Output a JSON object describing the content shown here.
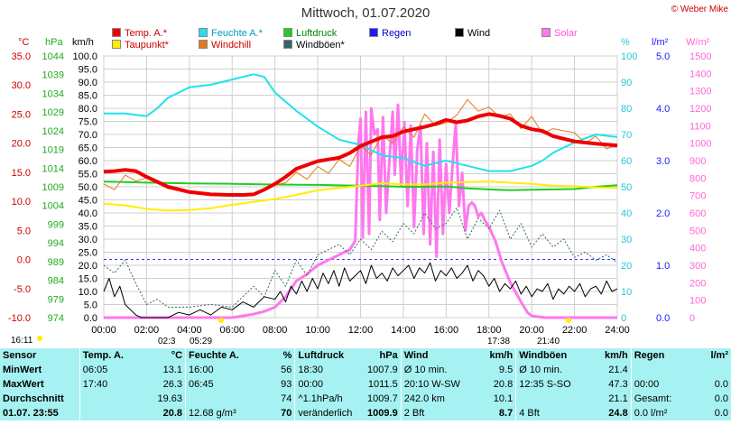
{
  "title": "Mittwoch, 01.07.2020",
  "credit": "© Weber Mike",
  "legend": [
    {
      "label": "Temp. A.*",
      "color": "#ee0000"
    },
    {
      "label": "Feuchte A.*",
      "color": "#22e0ee"
    },
    {
      "label": "Luftdruck",
      "color": "#22cc22"
    },
    {
      "label": "Regen",
      "color": "#1a1aff"
    },
    {
      "label": "Wind",
      "color": "#000000"
    },
    {
      "label": "Solar",
      "color": "#ff77ee"
    },
    {
      "label": "Taupunkt*",
      "color": "#ffee00"
    },
    {
      "label": "Windchill",
      "color": "#e07a1a"
    },
    {
      "label": "Windböen*",
      "color": "#336666"
    }
  ],
  "units": {
    "temp": "°C",
    "press": "hPa",
    "wind": "km/h",
    "hum": "%",
    "rain": "l/m²",
    "solar": "W/m²"
  },
  "chart_data": {
    "type": "line",
    "x_labels": [
      "00:00",
      "02:00",
      "04:00",
      "06:00",
      "08:00",
      "10:00",
      "12:00",
      "14:00",
      "16:00",
      "18:00",
      "20:00",
      "22:00",
      "24:00"
    ],
    "axes": {
      "temp": {
        "ticks": [
          "35.0",
          "30.0",
          "25.0",
          "20.0",
          "15.0",
          "10.0",
          "5.0",
          "0.0",
          "-5.0",
          "-10.0"
        ],
        "range": [
          -10,
          35
        ],
        "color": "#ee0000"
      },
      "press": {
        "ticks": [
          "1044",
          "1039",
          "1034",
          "1029",
          "1024",
          "1019",
          "1014",
          "1009",
          "1004",
          "999",
          "994",
          "989",
          "984",
          "979",
          "974"
        ],
        "range": [
          974,
          1044
        ],
        "color": "#22aa22"
      },
      "wind": {
        "ticks": [
          "100.0",
          "95.0",
          "90.0",
          "85.0",
          "80.0",
          "75.0",
          "70.0",
          "65.0",
          "60.0",
          "55.0",
          "50.0",
          "45.0",
          "40.0",
          "35.0",
          "30.0",
          "25.0",
          "20.0",
          "15.0",
          "10.0",
          "5.0",
          "0.0"
        ],
        "range": [
          0,
          100
        ],
        "color": "#000000"
      },
      "hum": {
        "ticks": [
          "100",
          "90",
          "80",
          "70",
          "60",
          "50",
          "40",
          "30",
          "20",
          "10",
          "0"
        ],
        "range": [
          0,
          100
        ],
        "color": "#22d0dd"
      },
      "rain": {
        "ticks": [
          "5.0",
          "4.0",
          "3.0",
          "2.0",
          "1.0",
          "0.0"
        ],
        "range": [
          0,
          5
        ],
        "color": "#1a1aff"
      },
      "solar": {
        "ticks": [
          "1500",
          "1400",
          "1300",
          "1200",
          "1100",
          "1000",
          "900",
          "800",
          "700",
          "600",
          "500",
          "400",
          "300",
          "200",
          "100",
          "0"
        ],
        "range": [
          0,
          1500
        ],
        "color": "#ff77ee"
      }
    },
    "series": [
      {
        "name": "Temp. A.*",
        "axis": "temp",
        "color": "#ee0000",
        "width": 4,
        "x": [
          0,
          0.5,
          1,
          1.5,
          2,
          3,
          4,
          5,
          6,
          6.5,
          7,
          7.5,
          8,
          8.5,
          9,
          10,
          11,
          11.5,
          12,
          13,
          13.5,
          14,
          15,
          15.5,
          16,
          16.5,
          17,
          17.5,
          18,
          18.5,
          19,
          19.5,
          20,
          20.5,
          21,
          22,
          23,
          24
        ],
        "y": [
          15.1,
          15.2,
          15.4,
          15.2,
          14.2,
          12.5,
          11.6,
          11.2,
          11.1,
          11.1,
          11.2,
          12.0,
          13.0,
          14.2,
          15.6,
          16.9,
          17.5,
          18.3,
          19.5,
          21.0,
          21.2,
          22.0,
          22.8,
          23.3,
          24.0,
          23.6,
          23.9,
          24.6,
          25.0,
          24.7,
          24.2,
          23.0,
          22.4,
          22.1,
          21.2,
          20.3,
          19.9,
          19.6
        ]
      },
      {
        "name": "Feuchte A.*",
        "axis": "hum",
        "color": "#22e0ee",
        "width": 2,
        "x": [
          0,
          1,
          2,
          2.5,
          3,
          3.5,
          4,
          5,
          6,
          7,
          7.5,
          8,
          9,
          10,
          11,
          12,
          13,
          14,
          15,
          16,
          17,
          17.5,
          18,
          19,
          20,
          20.5,
          21,
          22,
          23,
          24
        ],
        "y": [
          78,
          78,
          77,
          80,
          84,
          86,
          88,
          89,
          91,
          93,
          92,
          86,
          79,
          73,
          68,
          66,
          62,
          61,
          58,
          60,
          58,
          57,
          56,
          56,
          58,
          60,
          63,
          67,
          70,
          69
        ]
      },
      {
        "name": "Luftdruck",
        "axis": "press",
        "color": "#22cc22",
        "width": 2,
        "x": [
          0,
          2,
          4,
          6,
          8,
          10,
          12,
          13,
          14,
          15,
          16,
          17,
          18,
          19,
          20,
          21,
          22,
          23,
          24
        ],
        "y": [
          1010.4,
          1010.1,
          1009.9,
          1009.8,
          1009.6,
          1009.5,
          1009.3,
          1009.2,
          1009.0,
          1009.0,
          1009.1,
          1008.6,
          1008.3,
          1008.1,
          1008.2,
          1008.3,
          1008.4,
          1009.0,
          1009.4
        ]
      },
      {
        "name": "Taupunkt*",
        "axis": "temp",
        "color": "#ffee00",
        "width": 2,
        "x": [
          0,
          1,
          2,
          3,
          4,
          5,
          6,
          7,
          8,
          9,
          10,
          11,
          12,
          13,
          14,
          15,
          16,
          17,
          18,
          19,
          20,
          21,
          22,
          23,
          24
        ],
        "y": [
          9.6,
          9.3,
          8.7,
          8.4,
          8.5,
          8.8,
          9.4,
          9.9,
          10.4,
          11.1,
          11.9,
          12.3,
          12.7,
          13.1,
          12.9,
          12.9,
          13.2,
          13.3,
          13.4,
          13.2,
          13.0,
          12.7,
          12.6,
          12.4,
          12.3
        ]
      },
      {
        "name": "Windchill",
        "axis": "temp",
        "color": "#e07a1a",
        "width": 1,
        "x": [
          0,
          0.5,
          1,
          1.5,
          2,
          3,
          4,
          5,
          6,
          7,
          8,
          8.5,
          9,
          9.5,
          10,
          10.5,
          11,
          11.5,
          12,
          12.5,
          13,
          13.5,
          14,
          14.5,
          15,
          15.5,
          16,
          16.5,
          17,
          17.5,
          18,
          18.5,
          19,
          19.5,
          20,
          20.5,
          21,
          22,
          22.5,
          23,
          23.5,
          24
        ],
        "y": [
          13.0,
          12.0,
          14.5,
          13.5,
          14.0,
          12.2,
          11.4,
          11.1,
          11.0,
          11.1,
          12.8,
          13.2,
          15.0,
          13.8,
          16.0,
          14.8,
          17.2,
          16.0,
          19.5,
          18.0,
          21.4,
          20.0,
          22.8,
          21.0,
          25.0,
          23.0,
          23.5,
          24.8,
          27.5,
          25.5,
          26.2,
          24.5,
          25.0,
          22.5,
          24.6,
          21.7,
          22.5,
          21.8,
          20.0,
          21.2,
          19.0,
          19.8
        ]
      },
      {
        "name": "Windböen*",
        "axis": "wind",
        "color": "#336666",
        "width": 1,
        "dash": "2,2",
        "x": [
          0,
          0.5,
          1,
          1.5,
          2,
          2.5,
          3,
          4,
          5,
          6,
          6.5,
          7,
          7.5,
          8,
          8.5,
          9,
          9.5,
          10,
          11,
          11.5,
          12,
          12.5,
          13,
          13.5,
          14,
          14.5,
          15,
          15.5,
          16,
          16.5,
          17,
          17.5,
          18,
          18.5,
          19,
          19.5,
          20,
          20.5,
          21,
          21.5,
          22,
          22.5,
          23,
          23.5,
          24
        ],
        "y": [
          20,
          17,
          22,
          13,
          5,
          7,
          4,
          4,
          5,
          4,
          8,
          12,
          8,
          18,
          12,
          22,
          16,
          24,
          28,
          24,
          30,
          26,
          33,
          29,
          36,
          32,
          40,
          34,
          36,
          42,
          30,
          38,
          34,
          41,
          30,
          36,
          27,
          32,
          27,
          30,
          23,
          25,
          22,
          24,
          21
        ]
      },
      {
        "name": "Wind",
        "axis": "wind",
        "color": "#000000",
        "width": 1,
        "x": [
          0,
          0.25,
          0.5,
          0.75,
          1,
          1.25,
          1.5,
          1.75,
          2,
          2.5,
          3,
          3.5,
          4,
          4.5,
          5,
          5.5,
          6,
          6.5,
          7,
          7.5,
          8,
          8.25,
          8.5,
          8.75,
          9,
          9.25,
          9.5,
          9.75,
          10,
          10.25,
          10.5,
          10.75,
          11,
          11.25,
          11.5,
          11.75,
          12,
          12.25,
          12.5,
          12.75,
          13,
          13.25,
          13.5,
          13.75,
          14,
          14.25,
          14.5,
          14.75,
          15,
          15.25,
          15.5,
          15.75,
          16,
          16.25,
          16.5,
          16.75,
          17,
          17.25,
          17.5,
          17.75,
          18,
          18.25,
          18.5,
          18.75,
          19,
          19.25,
          19.5,
          19.75,
          20,
          20.25,
          20.5,
          20.75,
          21,
          21.25,
          21.5,
          21.75,
          22,
          22.25,
          22.5,
          22.75,
          23,
          23.25,
          23.5,
          23.75,
          24
        ],
        "y": [
          10,
          15,
          8,
          12,
          5,
          3,
          1,
          0,
          0,
          0,
          0,
          2,
          1,
          3,
          1,
          4,
          3,
          6,
          4,
          8,
          7,
          10,
          6,
          12,
          9,
          14,
          10,
          15,
          11,
          17,
          13,
          18,
          12,
          19,
          14,
          16,
          18,
          13,
          20,
          15,
          17,
          14,
          19,
          16,
          18,
          20,
          15,
          19,
          17,
          21,
          14,
          18,
          16,
          19,
          15,
          17,
          20,
          14,
          18,
          16,
          12,
          15,
          10,
          13,
          11,
          14,
          9,
          12,
          8,
          11,
          10,
          13,
          7,
          11,
          9,
          12,
          10,
          13,
          8,
          11,
          12,
          9,
          14,
          10,
          11
        ]
      },
      {
        "name": "Solar",
        "axis": "solar",
        "color": "#ff77ee",
        "width": 3,
        "x": [
          0,
          6,
          6.5,
          7,
          7.5,
          8,
          8.5,
          9,
          9.5,
          10,
          10.5,
          11,
          11.5,
          11.75,
          11.9,
          12.0,
          12.1,
          12.25,
          12.4,
          12.5,
          12.65,
          12.8,
          12.9,
          13.05,
          13.2,
          13.35,
          13.5,
          13.6,
          13.75,
          13.9,
          14.05,
          14.2,
          14.35,
          14.5,
          14.65,
          14.8,
          14.95,
          15.1,
          15.25,
          15.4,
          15.55,
          15.7,
          15.85,
          16.0,
          16.15,
          16.3,
          16.45,
          16.6,
          16.75,
          16.9,
          17.05,
          17.2,
          17.35,
          17.5,
          17.65,
          17.8,
          18.0,
          18.3,
          18.6,
          19.0,
          19.5,
          19.8,
          20.0,
          20.3,
          20.6,
          24
        ],
        "y": [
          0,
          0,
          10,
          20,
          35,
          60,
          120,
          210,
          250,
          300,
          330,
          360,
          390,
          440,
          1000,
          1140,
          460,
          1180,
          480,
          1200,
          1050,
          1080,
          560,
          1150,
          600,
          900,
          1180,
          820,
          1220,
          760,
          1120,
          640,
          1100,
          520,
          960,
          1100,
          480,
          1000,
          420,
          950,
          350,
          1020,
          480,
          880,
          600,
          870,
          1110,
          640,
          830,
          500,
          640,
          660,
          640,
          580,
          600,
          560,
          520,
          440,
          320,
          200,
          90,
          30,
          10,
          5,
          0,
          0
        ]
      }
    ],
    "annotations": [
      "02:3",
      "05:29",
      "17:38",
      "21:40"
    ]
  },
  "stats": {
    "header": {
      "sensor": "Sensor",
      "temp": "Temp. A.",
      "temp_unit": "°C",
      "hum": "Feuchte A.",
      "hum_unit": "%",
      "press": "Luftdruck",
      "press_unit": "hPa",
      "wind": "Wind",
      "wind_unit": "km/h",
      "gust": "Windböen",
      "gust_unit": "km/h",
      "rain": "Regen",
      "rain_unit": "l/m²"
    },
    "rows": [
      {
        "label": "MinWert",
        "c": [
          "06:05",
          "13.1",
          "16:00",
          "56",
          "18:30",
          "1007.9",
          "Ø 10 min.",
          "9.5",
          "Ø 10 min.",
          "21.4",
          "",
          ""
        ]
      },
      {
        "label": "MaxWert",
        "c": [
          "17:40",
          "26.3",
          "06:45",
          "93",
          "00:00",
          "1011.5",
          "20:10   W-SW",
          "20.8",
          "12:35   S-SO",
          "47.3",
          "00:00",
          "0.0"
        ]
      },
      {
        "label": "Durchschnitt",
        "c": [
          "",
          "19.63",
          "",
          "74",
          "^1.1hPa/h",
          "1009.7",
          "242.0 km",
          "10.1",
          "",
          "21.1",
          "Gesamt:",
          "0.0"
        ]
      },
      {
        "label": "01.07. 23:55",
        "c": [
          "",
          "20.8",
          "12.68 g/m³",
          "70",
          "veränderlich",
          "1009.9",
          "2 Bft",
          "8.7",
          "4 Bft",
          "24.8",
          "0.0 l/m²",
          "0.0"
        ]
      }
    ]
  },
  "sun_times": {
    "sunrise": "16:11"
  }
}
